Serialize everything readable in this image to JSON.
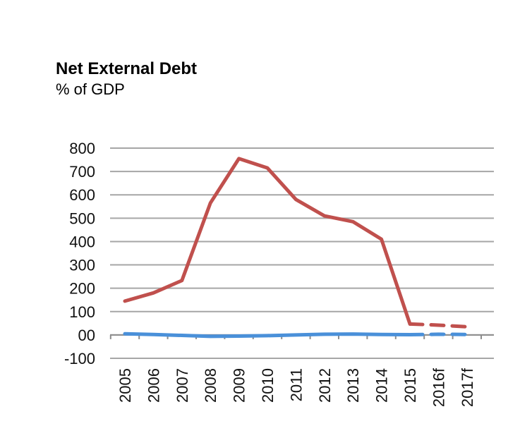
{
  "chart_data": {
    "type": "line",
    "title": "Net External Debt",
    "subtitle": "% of GDP",
    "xlabel": "",
    "ylabel": "",
    "categories": [
      "2005",
      "2006",
      "2007",
      "2008",
      "2009",
      "2010",
      "2011",
      "2012",
      "2013",
      "2014",
      "2015",
      "2016f",
      "2017f"
    ],
    "ylim": [
      -100,
      800
    ],
    "yticks": [
      800,
      700,
      600,
      500,
      400,
      300,
      200,
      100,
      0,
      -100
    ],
    "ytick_labels": [
      "800",
      "700",
      "600",
      "500",
      "400",
      "300",
      "200",
      "100",
      "00",
      "-100"
    ],
    "grid": true,
    "series": [
      {
        "color": "#c0504d",
        "values": [
          145,
          180,
          233,
          565,
          755,
          715,
          580,
          510,
          485,
          410,
          47,
          42,
          35
        ],
        "forecast_from_index": 10
      },
      {
        "color": "#4a90d9",
        "values": [
          5,
          2,
          -2,
          -6,
          -5,
          -3,
          0,
          3,
          4,
          2,
          1,
          3,
          2
        ],
        "forecast_from_index": 10
      }
    ]
  }
}
